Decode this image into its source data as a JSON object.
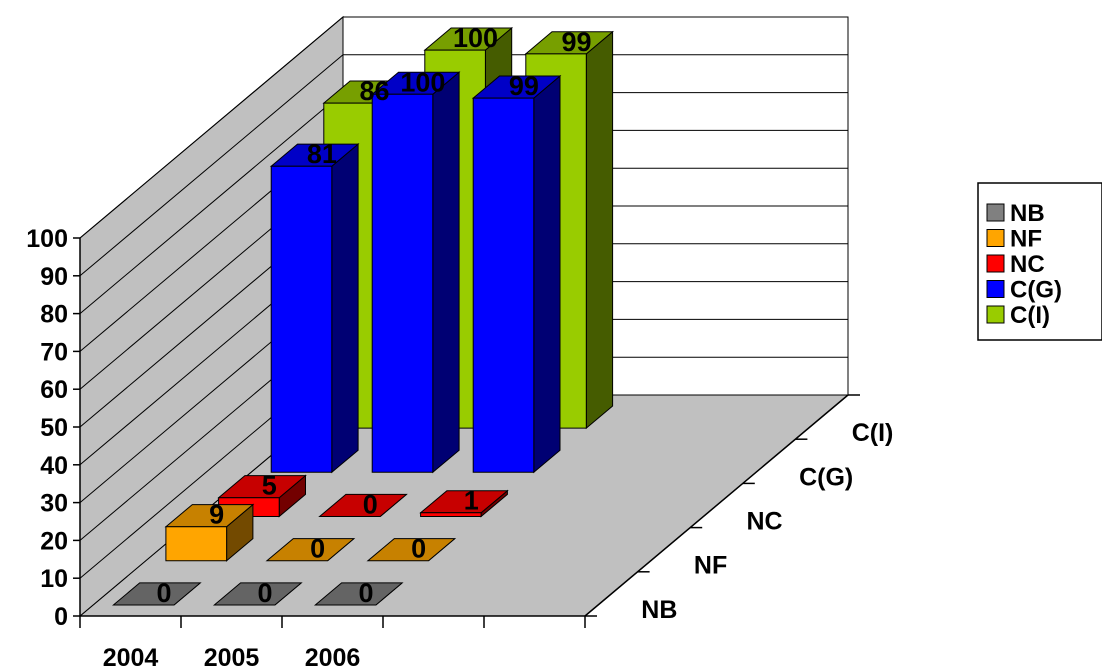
{
  "chart_data": {
    "type": "bar",
    "categories": [
      "2004",
      "2005",
      "2006"
    ],
    "series": [
      {
        "name": "NB",
        "values": [
          0,
          0,
          0
        ],
        "labels": [
          "0",
          "0",
          "0"
        ],
        "color": "#808080"
      },
      {
        "name": "NF",
        "values": [
          9,
          0,
          0
        ],
        "labels": [
          "9",
          "0",
          "0"
        ],
        "color": "#FFA500"
      },
      {
        "name": "NC",
        "values": [
          5,
          0,
          1
        ],
        "labels": [
          "5",
          "0",
          "1"
        ],
        "color": "#FF0000"
      },
      {
        "name": "C(G)",
        "values": [
          81,
          100,
          99
        ],
        "labels": [
          "81",
          "100",
          "99"
        ],
        "color": "#0000FF"
      },
      {
        "name": "C(I)",
        "values": [
          86,
          100,
          99
        ],
        "labels": [
          "86",
          "100",
          "99"
        ],
        "color": "#99CC00"
      }
    ],
    "y_ticks": [
      "0",
      "10",
      "20",
      "30",
      "40",
      "50",
      "60",
      "70",
      "80",
      "90",
      "100"
    ],
    "ylim": [
      0,
      100
    ],
    "depth_labels": [
      "NB",
      "NF",
      "NC",
      "C(G)",
      "C(I)"
    ],
    "legend": {
      "position": "right",
      "entries": [
        "NB",
        "NF",
        "NC",
        "C(G)",
        "C(I)"
      ]
    },
    "grid": true,
    "title": "",
    "xlabel": "",
    "ylabel": ""
  }
}
